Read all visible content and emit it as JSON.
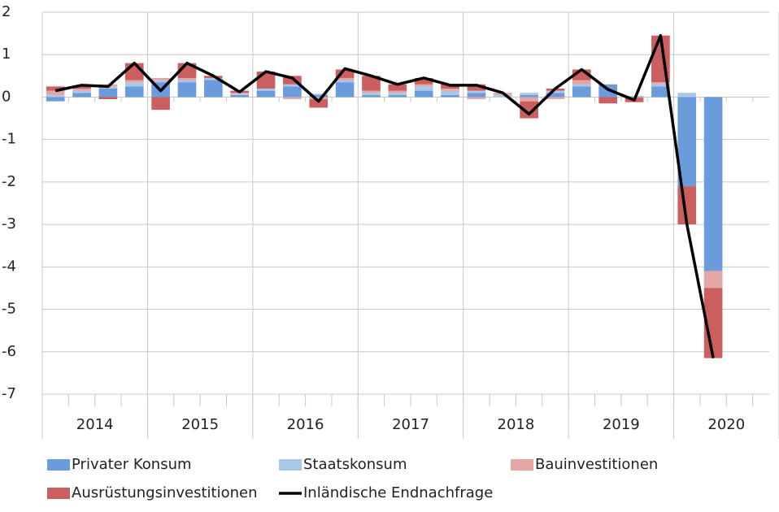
{
  "chart_data": {
    "type": "bar",
    "stacked": true,
    "x_groups": [
      "2014",
      "2015",
      "2016",
      "2017",
      "2018",
      "2019",
      "2020"
    ],
    "categories": [
      null,
      null,
      null,
      null,
      null,
      null,
      null,
      null,
      null,
      null,
      null,
      null,
      null,
      null,
      null,
      null,
      null,
      null,
      null,
      null,
      null,
      null,
      null,
      null,
      null,
      null
    ],
    "series": [
      {
        "name": "Privater Konsum",
        "color": "#6a9bdb",
        "values": [
          -0.1,
          0.1,
          0.2,
          0.25,
          0.35,
          0.35,
          0.4,
          0.05,
          0.15,
          0.25,
          0.05,
          0.35,
          0.05,
          0.05,
          0.15,
          0.05,
          0.1,
          0.0,
          0.05,
          0.1,
          0.25,
          0.3,
          0.02,
          0.25,
          -2.1,
          -4.1
        ]
      },
      {
        "name": "Staatskonsum",
        "color": "#a9c8e8",
        "values": [
          0.05,
          0.05,
          0.05,
          0.1,
          0.05,
          0.05,
          0.05,
          0.03,
          0.05,
          0.05,
          0.03,
          0.05,
          0.05,
          0.05,
          0.1,
          0.1,
          0.05,
          0.05,
          0.05,
          0.05,
          0.05,
          0.0,
          0.0,
          0.05,
          0.1,
          0.0
        ]
      },
      {
        "name": "Bauinvestitionen",
        "color": "#e3a5a5",
        "values": [
          0.1,
          0.05,
          0.05,
          0.05,
          0.05,
          0.05,
          0.0,
          0.02,
          0.0,
          -0.05,
          -0.05,
          0.05,
          0.05,
          0.05,
          0.05,
          0.05,
          -0.05,
          0.05,
          -0.1,
          -0.05,
          0.1,
          0.0,
          -0.02,
          0.05,
          0.0,
          -0.4
        ]
      },
      {
        "name": "Ausrüstungsinvestitionen",
        "color": "#cb5e5e",
        "values": [
          0.1,
          0.05,
          -0.05,
          0.4,
          -0.3,
          0.35,
          0.05,
          0.05,
          0.4,
          0.2,
          -0.2,
          0.2,
          0.35,
          0.15,
          0.15,
          0.1,
          0.15,
          0.0,
          -0.4,
          0.05,
          0.25,
          -0.15,
          -0.1,
          1.1,
          -0.9,
          -1.65
        ]
      },
      {
        "name": "Inländische Endnachfrage",
        "type": "line",
        "color": "#000000",
        "values": [
          0.15,
          0.28,
          0.25,
          0.8,
          0.15,
          0.8,
          0.5,
          0.12,
          0.6,
          0.45,
          -0.1,
          0.67,
          0.5,
          0.3,
          0.45,
          0.28,
          0.28,
          0.1,
          -0.4,
          0.2,
          0.65,
          0.18,
          -0.07,
          1.45,
          -3.0,
          -6.15
        ]
      }
    ],
    "ylim": [
      -7,
      2
    ],
    "yticks": [
      -7,
      -6,
      -5,
      -4,
      -3,
      -2,
      -1,
      0,
      1,
      2
    ],
    "grid": true
  }
}
